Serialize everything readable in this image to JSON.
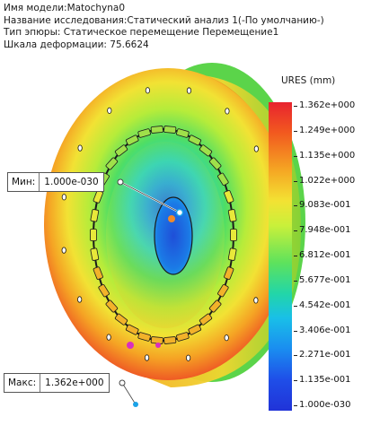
{
  "header": {
    "model_name": "Имя модели:Matochyna0",
    "study_name": "Название исследования:Статический анализ 1(-По умолчанию-)",
    "plot_type": "Тип эпюры: Статическое перемещение Перемещение1",
    "deformation_scale": "Шкала деформации: 75.6624"
  },
  "legend": {
    "title": "URES (mm)",
    "labels": [
      "1.362e+000",
      "1.249e+000",
      "1.135e+000",
      "1.022e+000",
      "9.083e-001",
      "7.948e-001",
      "6.812e-001",
      "5.677e-001",
      "4.542e-001",
      "3.406e-001",
      "2.271e-001",
      "1.135e-001",
      "1.000e-030"
    ]
  },
  "probes": {
    "min": {
      "label": "Мин:",
      "value": "1.000e-030"
    },
    "max": {
      "label": "Макс:",
      "value": "1.362e+000"
    }
  },
  "colors": {
    "max": "#e8232f",
    "min": "#2033d8",
    "background": "#ffffff"
  }
}
